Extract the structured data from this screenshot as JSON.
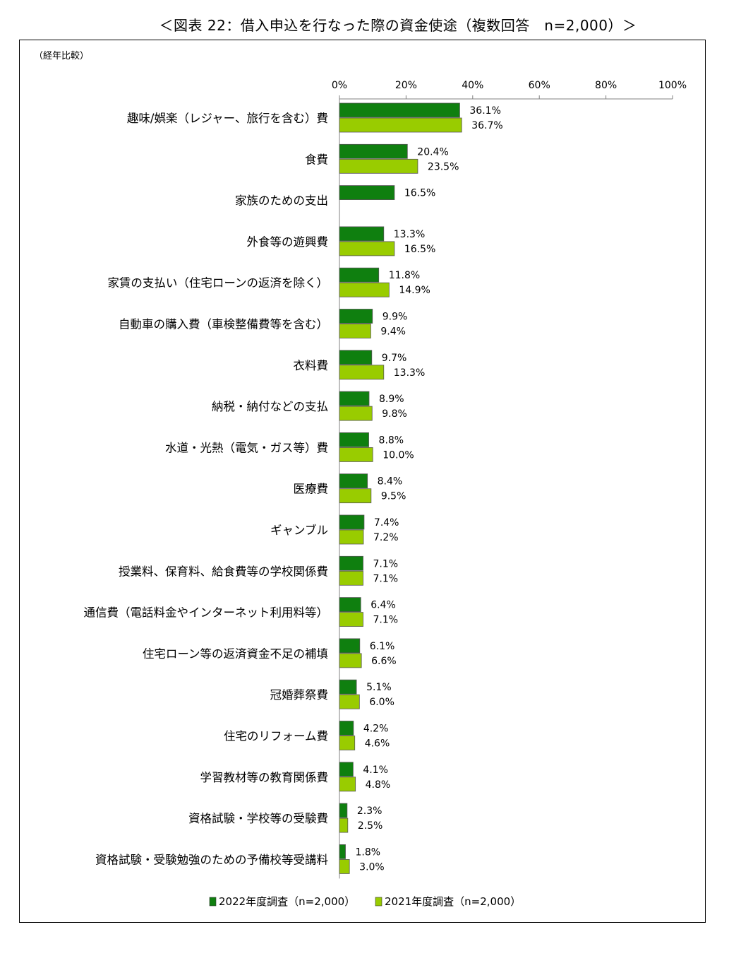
{
  "title": "＜図表 22：借入申込を行なった際の資金使途（複数回答　n=2,000）＞",
  "subtitle": "（経年比較）",
  "colors": {
    "s2022": "#0f7f0f",
    "s2021": "#99cc00",
    "axis": "#808080",
    "frame": "#000000"
  },
  "chart_data": {
    "type": "bar",
    "orientation": "horizontal",
    "xlim": [
      0,
      100
    ],
    "ticks": [
      "0%",
      "20%",
      "40%",
      "60%",
      "80%",
      "100%"
    ],
    "tick_values": [
      0,
      20,
      40,
      60,
      80,
      100
    ],
    "legend_position": "bottom",
    "categories": [
      "趣味/娯楽（レジャー、旅行を含む）費",
      "食費",
      "家族のための支出",
      "外食等の遊興費",
      "家賃の支払い（住宅ローンの返済を除く）",
      "自動車の購入費（車検整備費等を含む）",
      "衣料費",
      "納税・納付などの支払",
      "水道・光熱（電気・ガス等）費",
      "医療費",
      "ギャンブル",
      "授業料、保育料、給食費等の学校関係費",
      "通信費（電話料金やインターネット利用料等）",
      "住宅ローン等の返済資金不足の補填",
      "冠婚葬祭費",
      "住宅のリフォーム費",
      "学習教材等の教育関係費",
      "資格試験・学校等の受験費",
      "資格試験・受験勉強のための予備校等受講料"
    ],
    "series": [
      {
        "name": "2022年度調査（n=2,000）",
        "values": [
          36.1,
          20.4,
          16.5,
          13.3,
          11.8,
          9.9,
          9.7,
          8.9,
          8.8,
          8.4,
          7.4,
          7.1,
          6.4,
          6.1,
          5.1,
          4.2,
          4.1,
          2.3,
          1.8
        ],
        "labels": [
          "36.1%",
          "20.4%",
          "16.5%",
          "13.3%",
          "11.8%",
          "9.9%",
          "9.7%",
          "8.9%",
          "8.8%",
          "8.4%",
          "7.4%",
          "7.1%",
          "6.4%",
          "6.1%",
          "5.1%",
          "4.2%",
          "4.1%",
          "2.3%",
          "1.8%"
        ]
      },
      {
        "name": "2021年度調査（n=2,000）",
        "values": [
          36.7,
          23.5,
          null,
          16.5,
          14.9,
          9.4,
          13.3,
          9.8,
          10.0,
          9.5,
          7.2,
          7.1,
          7.1,
          6.6,
          6.0,
          4.6,
          4.8,
          2.5,
          3.0
        ],
        "labels": [
          "36.7%",
          "23.5%",
          "",
          "16.5%",
          "14.9%",
          "9.4%",
          "13.3%",
          "9.8%",
          "10.0%",
          "9.5%",
          "7.2%",
          "7.1%",
          "7.1%",
          "6.6%",
          "6.0%",
          "4.6%",
          "4.8%",
          "2.5%",
          "3.0%"
        ]
      }
    ]
  }
}
